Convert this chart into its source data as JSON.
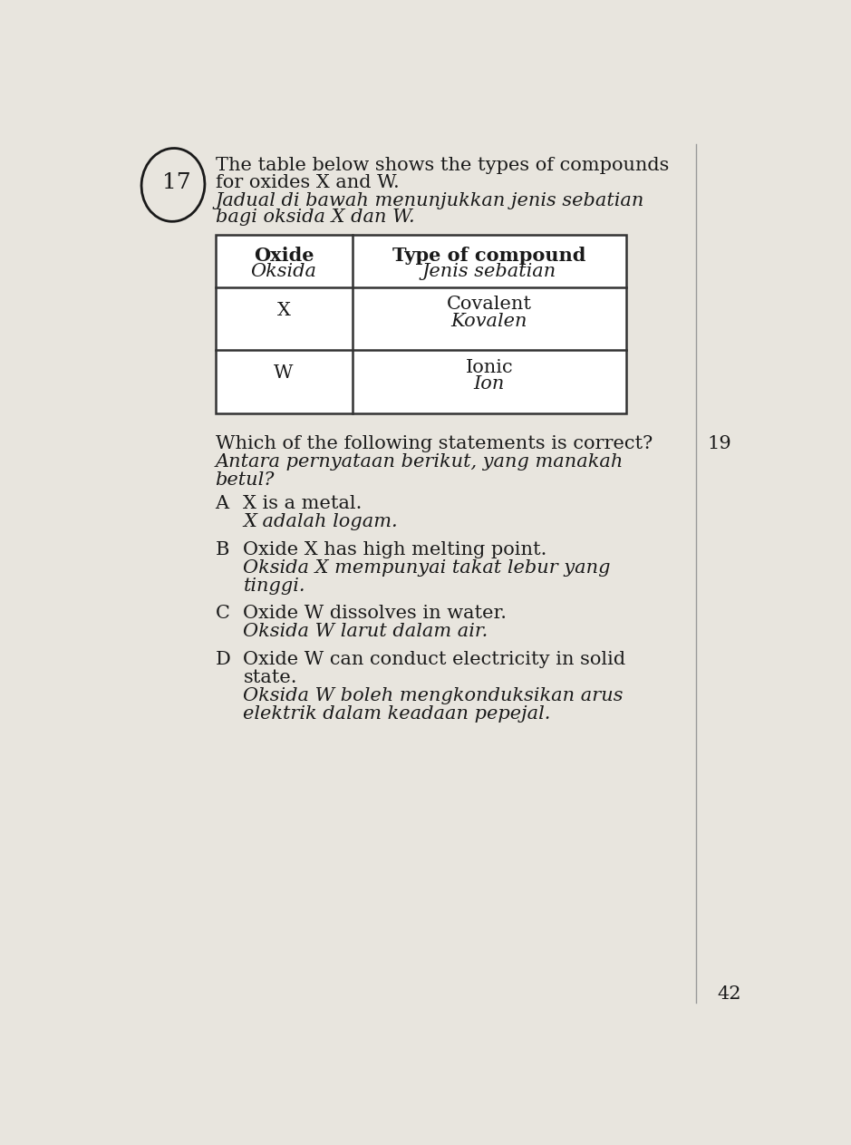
{
  "bg_color": "#e8e5de",
  "page_num": "42",
  "question_num": "17",
  "side_num": "19",
  "q_en_line1": "The table below shows the types of compounds",
  "q_en_line2": "for oxides X and W.",
  "q_my_line1": "Jadual di bawah menunjukkan jenis sebatian",
  "q_my_line2": "bagi oksida X dan W.",
  "stem_en": "Which of the following statements is correct?",
  "stem_my_line1": "Antara pernyataan berikut, yang manakah",
  "stem_my_line2": "betul?",
  "opt_A_en": "X is a metal.",
  "opt_A_my": "X adalah logam.",
  "opt_B_en": "Oxide X has high melting point.",
  "opt_B_my_1": "Oksida X mempunyai takat lebur yang",
  "opt_B_my_2": "tinggi.",
  "opt_C_en": "Oxide W dissolves in water.",
  "opt_C_my": "Oksida W larut dalam air.",
  "opt_D_en_1": "Oxide W can conduct electricity in solid",
  "opt_D_en_2": "state.",
  "opt_D_my_1": "Oksida W boleh mengkonduksikan arus",
  "opt_D_my_2": "elektrik dalam keadaan pepejal.",
  "text_color": "#1a1a1a",
  "table_line_color": "#333333",
  "divider_line_color": "#999999",
  "fs": 15,
  "fs_small": 13
}
